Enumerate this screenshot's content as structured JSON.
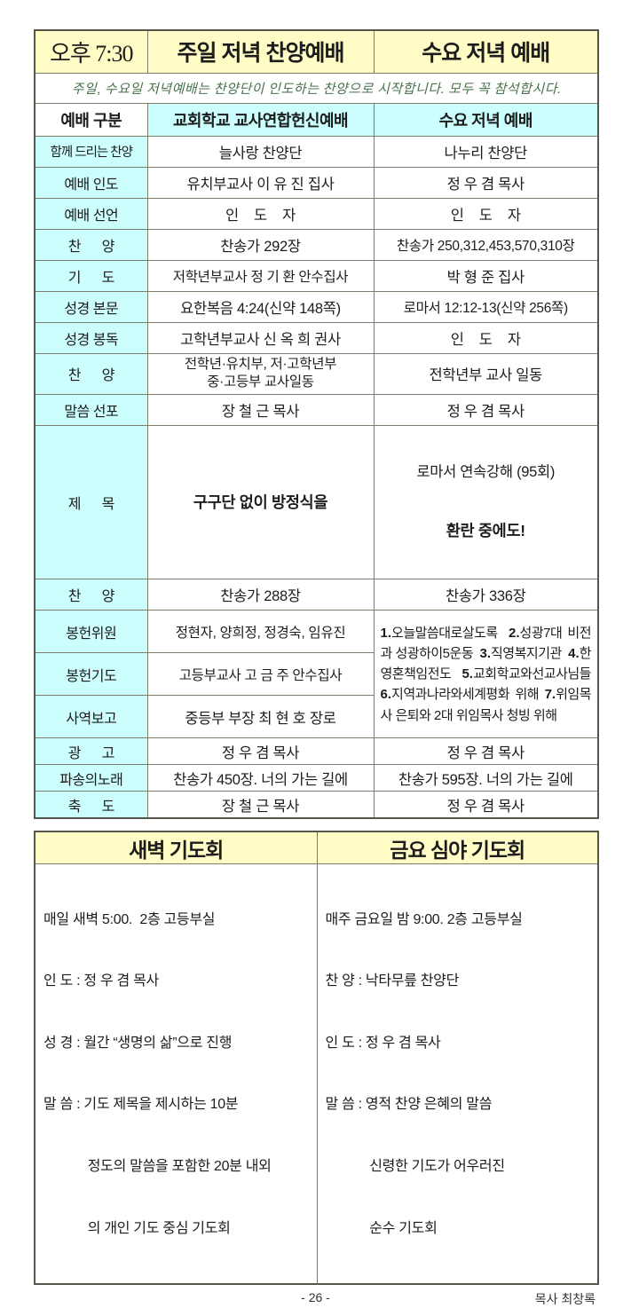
{
  "colors": {
    "header_bg": "#FFFCC6",
    "label_bg": "#CCFEFE",
    "notice_text": "#49724d"
  },
  "header": {
    "time": "오후 7:30",
    "sunday_title": "주일 저녁 찬양예배",
    "wednesday_title": "수요 저녁 예배"
  },
  "notice": "주일, 수요일 저녁예배는 찬양단이 인도하는 찬양으로 시작합니다. 모두 꼭 참석합시다.",
  "columns": [
    "예배 구분",
    "교회학교 교사연합헌신예배",
    "수요 저녁 예배"
  ],
  "rows": [
    {
      "label": "함께 드리는 찬양",
      "col2": "늘사랑 찬양단",
      "col3": "나누리 찬양단"
    },
    {
      "label": "예배 인도",
      "col2": "유치부교사 이 유 진 집사",
      "col3": "정 우 겸 목사"
    },
    {
      "label": "예배 선언",
      "col2": "인    도    자",
      "col3": "인    도    자"
    },
    {
      "label": "찬      양",
      "col2": "찬송가 292장",
      "col3": "찬송가 250,312,453,570,310장"
    },
    {
      "label": "기      도",
      "col2": "저학년부교사 정 기 환 안수집사",
      "col3": "박 형 준 집사"
    },
    {
      "label": "성경 본문",
      "col2": "요한복음 4:24(신약 148쪽)",
      "col3": "로마서 12:12-13(신약 256쪽)"
    },
    {
      "label": "성경 봉독",
      "col2": "고학년부교사 신 옥 희 권사",
      "col3": "인    도    자"
    },
    {
      "label": "찬      양",
      "col2": "전학년·유치부, 저·고학년부\n중·고등부 교사일동",
      "col3": "전학년부 교사 일동"
    },
    {
      "label": "말씀 선포",
      "col2": "장 철 근 목사",
      "col3": "정 우 겸 목사"
    },
    {
      "label": "제      목",
      "col2": "구구단 없이 방정식을",
      "col3_line1": "로마서 연속강해 (95회)",
      "col3_line2": "환란 중에도!"
    },
    {
      "label": "찬      양",
      "col2": "찬송가 288장",
      "col3": "찬송가 336장"
    },
    {
      "label": "봉헌위원",
      "col2": "정현자, 양희정, 정경숙, 임유진",
      "col3_merged": "1.오늘말씀대로살도록  2.성광7대 비전과 성광하이5운동  3.직영복지기관  4.한영혼책임전도  5.교회학교와선교사님들  6.지역과나라와세계평화 위해 7.위임목사 은퇴와 2대 위임목사 청빙 위해"
    },
    {
      "label": "봉헌기도",
      "col2": "고등부교사 고 금 주 안수집사"
    },
    {
      "label": "사역보고",
      "col2": "중등부 부장 최 현 호 장로"
    },
    {
      "label": "광      고",
      "col2": "정 우 겸 목사",
      "col3": "정 우 겸 목사"
    },
    {
      "label": "파송의노래",
      "col2": "찬송가 450장. 너의 가는 길에",
      "col3": "찬송가 595장. 너의 가는 길에"
    },
    {
      "label": "축      도",
      "col2": "장 철 근 목사",
      "col3": "정 우 겸 목사"
    }
  ],
  "prayer": {
    "left": {
      "title": "새벽 기도회",
      "lines": [
        "매일 새벽 5:00.  2층 고등부실",
        "인 도 : 정 우 겸 목사",
        "성 경 : 월간 “생명의 삶”으로 진행",
        "말 씀 : 기도 제목을 제시하는 10분",
        "            정도의 말씀을 포함한 20분 내외",
        "            의 개인 기도 중심 기도회"
      ]
    },
    "right": {
      "title": "금요 심야 기도회",
      "lines": [
        "매주 금요일 밤 9:00. 2층 고등부실",
        "찬 양 : 낙타무릎 찬양단",
        "인 도 : 정 우 겸 목사",
        "말 씀 : 영적 찬양 은혜의 말씀",
        "            신령한 기도가 어우러진",
        "            순수 기도회"
      ]
    }
  },
  "footer": {
    "page": "- 26 -",
    "author": "목사 최창록"
  }
}
